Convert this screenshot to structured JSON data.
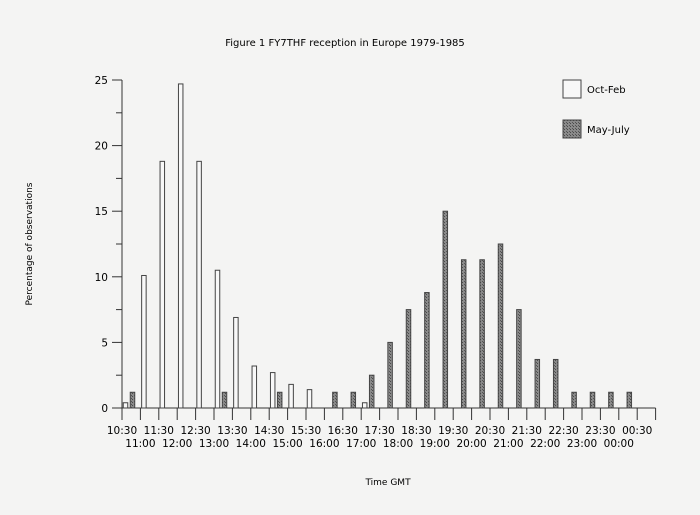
{
  "chart_data": {
    "type": "bar",
    "title": "Figure 1  FY7THF reception in Europe 1979-1985",
    "xlabel": "Time GMT",
    "ylabel": "Percentage of observations",
    "ylim": [
      0,
      25
    ],
    "yticks_major": [
      0,
      5,
      10,
      15,
      20,
      25
    ],
    "yticks_minor_step": 2.5,
    "grid": false,
    "legend_position": "top-right",
    "categories": [
      "10:30",
      "11:00",
      "11:30",
      "12:00",
      "12:30",
      "13:00",
      "13:30",
      "14:00",
      "14:30",
      "15:00",
      "15:30",
      "16:00",
      "16:30",
      "17:00",
      "17:30",
      "18:00",
      "18:30",
      "19:00",
      "19:30",
      "20:00",
      "20:30",
      "21:00",
      "21:30",
      "22:00",
      "22:30",
      "23:00",
      "23:30",
      "00:00",
      "00:30"
    ],
    "series": [
      {
        "name": "Oct-Feb",
        "fill": "#f8f8f8",
        "values": [
          0.4,
          10.1,
          18.8,
          24.7,
          18.8,
          10.5,
          6.9,
          3.2,
          2.7,
          1.8,
          1.4,
          0,
          0,
          0.4,
          0,
          0,
          0,
          0,
          0,
          0,
          0,
          0,
          0,
          0,
          0,
          0,
          0,
          0,
          0
        ]
      },
      {
        "name": "May-July",
        "fill": "#7a7a7a",
        "values": [
          1.2,
          0,
          0,
          0,
          0,
          1.2,
          0,
          0,
          1.2,
          0,
          0,
          1.2,
          1.2,
          2.5,
          5.0,
          7.5,
          8.8,
          15.0,
          11.3,
          11.3,
          12.5,
          7.5,
          3.7,
          3.7,
          1.2,
          1.2,
          1.2,
          1.2,
          0
        ]
      }
    ]
  },
  "labels": {
    "title": "Figure 1  FY7THF reception in Europe 1979-1985",
    "xlabel": "Time GMT",
    "ylabel": "Percentage of observations",
    "legend": [
      "Oct-Feb",
      "May-July"
    ]
  }
}
